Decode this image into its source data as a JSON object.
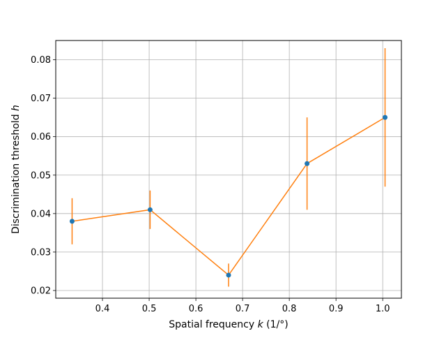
{
  "chart_data": {
    "type": "line",
    "title": "",
    "xlabel": "Spatial frequency k (1/°)",
    "xlabel_parts": {
      "before": "Spatial frequency ",
      "italic": "k",
      "after": " (1/°)"
    },
    "ylabel": "Discrimination threshold h",
    "ylabel_parts": {
      "before": "Discrimination threshold ",
      "italic": "h",
      "after": ""
    },
    "xlim": [
      0.3,
      1.04
    ],
    "ylim": [
      0.018,
      0.085
    ],
    "xticks": [
      0.4,
      0.5,
      0.6,
      0.7,
      0.8,
      0.9,
      1.0
    ],
    "xtick_labels": [
      "0.4",
      "0.5",
      "0.6",
      "0.7",
      "0.8",
      "0.9",
      "1.0"
    ],
    "yticks": [
      0.02,
      0.03,
      0.04,
      0.05,
      0.06,
      0.07,
      0.08
    ],
    "ytick_labels": [
      "0.02",
      "0.03",
      "0.04",
      "0.05",
      "0.06",
      "0.07",
      "0.08"
    ],
    "grid": true,
    "series": [
      {
        "x": [
          0.335,
          0.502,
          0.67,
          0.838,
          1.005
        ],
        "y": [
          0.038,
          0.041,
          0.024,
          0.053,
          0.065
        ],
        "yerr_low": [
          0.032,
          0.036,
          0.021,
          0.041,
          0.047
        ],
        "yerr_high": [
          0.044,
          0.046,
          0.027,
          0.065,
          0.083
        ],
        "line_color": "#ff7f0e",
        "marker_color": "#1f77b4"
      }
    ]
  }
}
